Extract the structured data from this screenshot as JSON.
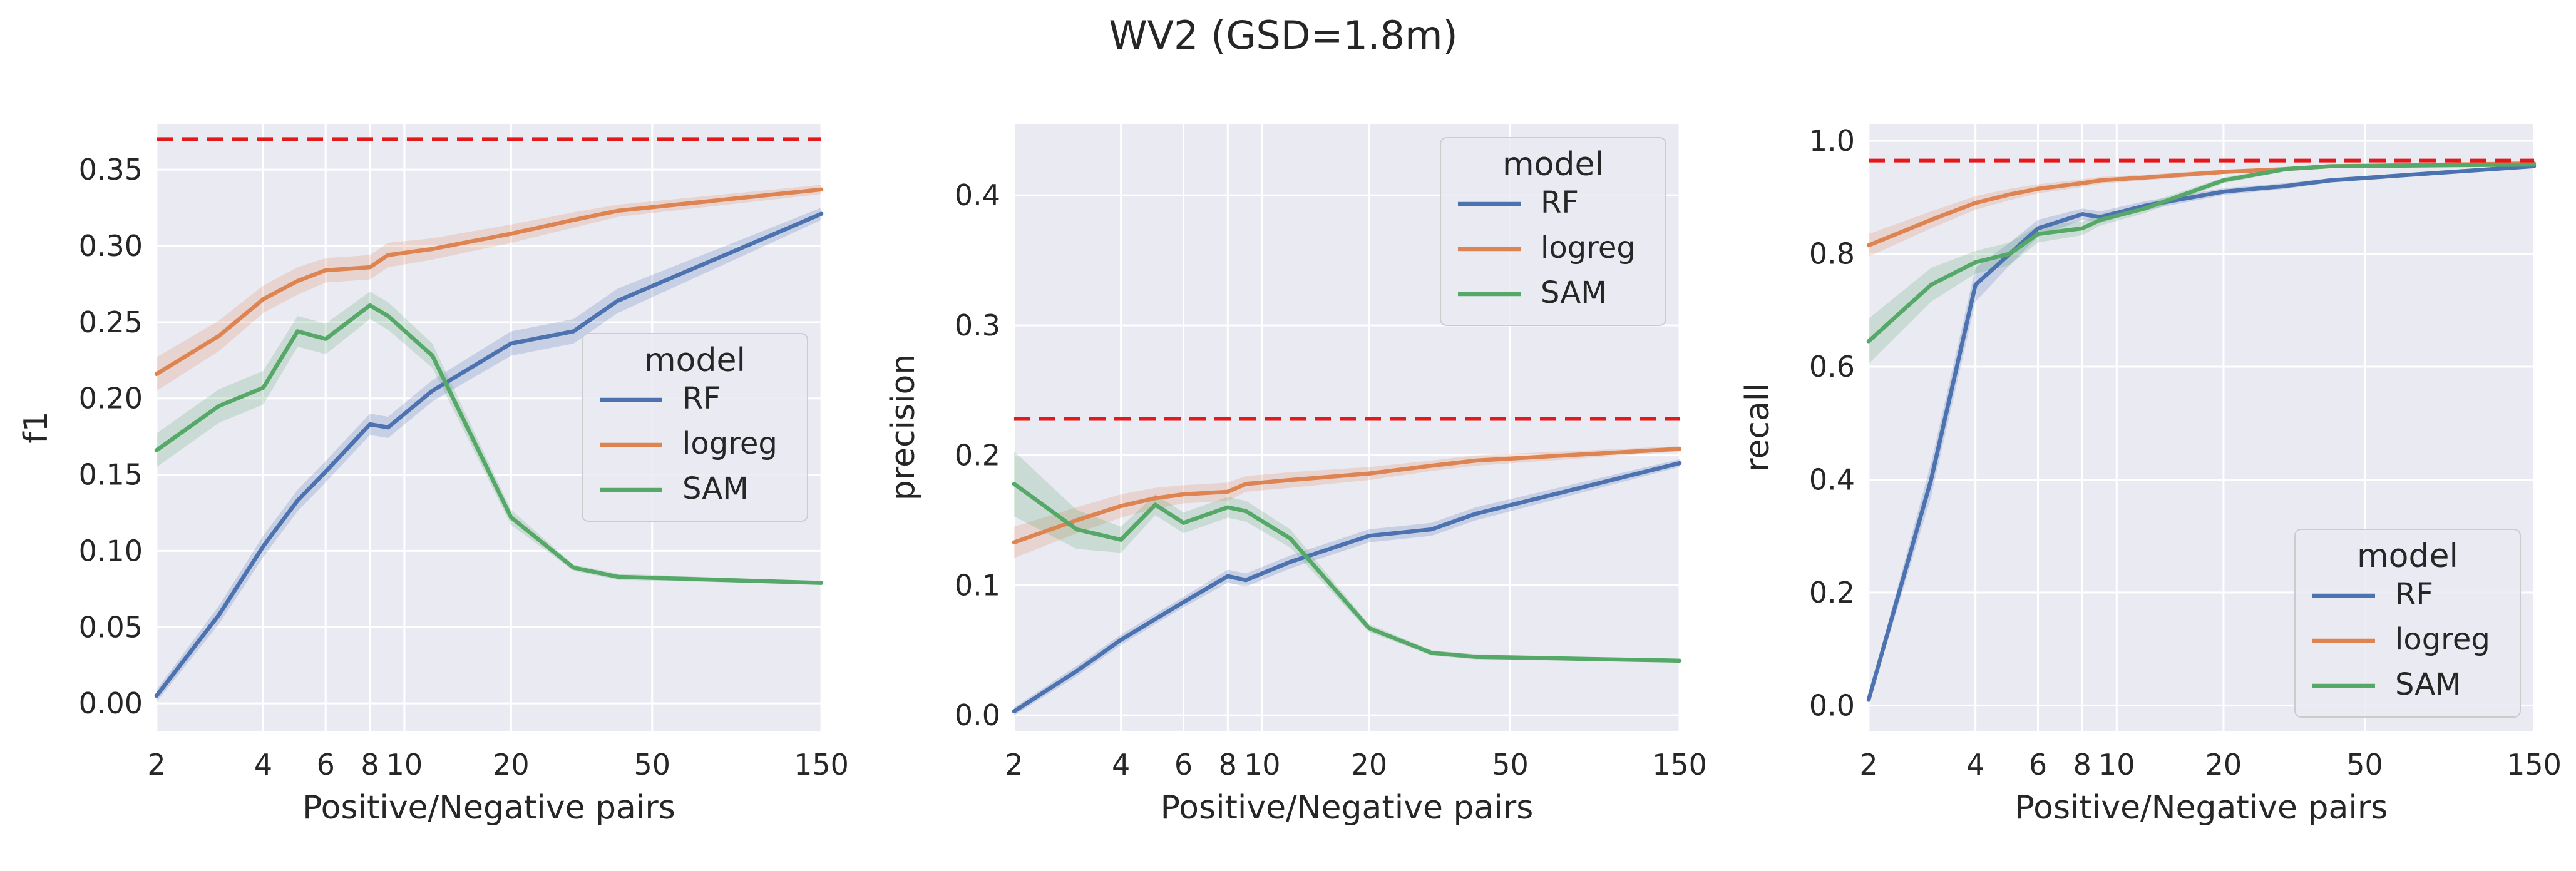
{
  "figure": {
    "title": "WV2 (GSD=1.8m)"
  },
  "chart_data": [
    {
      "type": "line",
      "ylabel": "f1",
      "xlabel": "Positive/Negative pairs",
      "xscale": "log",
      "xlim": [
        2,
        150
      ],
      "ylim": [
        -0.018,
        0.38
      ],
      "xticks": [
        2,
        4,
        6,
        8,
        10,
        20,
        50,
        150
      ],
      "xtick_labels": [
        "2",
        "4",
        "6",
        "8",
        "10",
        "20",
        "50",
        "150"
      ],
      "yticks": [
        0,
        0.05,
        0.1,
        0.15,
        0.2,
        0.25,
        0.3,
        0.35
      ],
      "ytick_labels": [
        "0.00",
        "0.05",
        "0.10",
        "0.15",
        "0.20",
        "0.25",
        "0.30",
        "0.35"
      ],
      "reference_line": {
        "y": 0.37,
        "color": "#e3191c",
        "style": "dashed"
      },
      "legend": {
        "title": "model",
        "position": "center-right"
      },
      "x": [
        2,
        3,
        4,
        5,
        6,
        8,
        9,
        12,
        20,
        30,
        40,
        150
      ],
      "series": [
        {
          "name": "RF",
          "color": "#4c72b0",
          "values": [
            0.005,
            0.058,
            0.103,
            0.133,
            0.152,
            0.183,
            0.181,
            0.205,
            0.236,
            0.244,
            0.264,
            0.321
          ],
          "ci": [
            0.004,
            0.006,
            0.007,
            0.007,
            0.007,
            0.007,
            0.007,
            0.007,
            0.008,
            0.008,
            0.008,
            0.004
          ]
        },
        {
          "name": "logreg",
          "color": "#dd8452",
          "values": [
            0.216,
            0.241,
            0.265,
            0.277,
            0.284,
            0.286,
            0.294,
            0.298,
            0.308,
            0.317,
            0.323,
            0.337
          ],
          "ci": [
            0.011,
            0.01,
            0.009,
            0.009,
            0.008,
            0.008,
            0.008,
            0.007,
            0.006,
            0.005,
            0.004,
            0.003
          ]
        },
        {
          "name": "SAM",
          "color": "#55a868",
          "values": [
            0.166,
            0.195,
            0.207,
            0.244,
            0.239,
            0.261,
            0.254,
            0.228,
            0.122,
            0.089,
            0.083,
            0.079
          ],
          "ci": [
            0.011,
            0.011,
            0.011,
            0.01,
            0.01,
            0.009,
            0.009,
            0.008,
            0.005,
            0.002,
            0.002,
            0.001
          ]
        }
      ]
    },
    {
      "type": "line",
      "ylabel": "precision",
      "xlabel": "Positive/Negative pairs",
      "xscale": "log",
      "xlim": [
        2,
        150
      ],
      "ylim": [
        -0.012,
        0.455
      ],
      "xticks": [
        2,
        4,
        6,
        8,
        10,
        20,
        50,
        150
      ],
      "xtick_labels": [
        "2",
        "4",
        "6",
        "8",
        "10",
        "20",
        "50",
        "150"
      ],
      "yticks": [
        0,
        0.1,
        0.2,
        0.3,
        0.4
      ],
      "ytick_labels": [
        "0.0",
        "0.1",
        "0.2",
        "0.3",
        "0.4"
      ],
      "reference_line": {
        "y": 0.228,
        "color": "#e3191c",
        "style": "dashed"
      },
      "legend": {
        "title": "model",
        "position": "top-right"
      },
      "x": [
        2,
        3,
        4,
        5,
        6,
        8,
        9,
        12,
        20,
        30,
        40,
        150
      ],
      "series": [
        {
          "name": "RF",
          "color": "#4c72b0",
          "values": [
            0.003,
            0.034,
            0.058,
            0.074,
            0.087,
            0.107,
            0.104,
            0.118,
            0.138,
            0.143,
            0.155,
            0.194
          ],
          "ci": [
            0.003,
            0.004,
            0.004,
            0.004,
            0.004,
            0.005,
            0.005,
            0.005,
            0.005,
            0.005,
            0.005,
            0.003
          ]
        },
        {
          "name": "logreg",
          "color": "#dd8452",
          "values": [
            0.133,
            0.15,
            0.161,
            0.167,
            0.17,
            0.172,
            0.178,
            0.181,
            0.186,
            0.192,
            0.196,
            0.205
          ],
          "ci": [
            0.012,
            0.01,
            0.009,
            0.008,
            0.007,
            0.007,
            0.006,
            0.006,
            0.005,
            0.004,
            0.004,
            0.002
          ]
        },
        {
          "name": "SAM",
          "color": "#55a868",
          "values": [
            0.178,
            0.143,
            0.135,
            0.162,
            0.148,
            0.16,
            0.157,
            0.136,
            0.067,
            0.048,
            0.045,
            0.042
          ],
          "ci": [
            0.025,
            0.015,
            0.01,
            0.008,
            0.008,
            0.008,
            0.008,
            0.007,
            0.003,
            0.002,
            0.002,
            0.001
          ]
        }
      ]
    },
    {
      "type": "line",
      "ylabel": "recall",
      "xlabel": "Positive/Negative pairs",
      "xscale": "log",
      "xlim": [
        2,
        150
      ],
      "ylim": [
        -0.045,
        1.03
      ],
      "xticks": [
        2,
        4,
        6,
        8,
        10,
        20,
        50,
        150
      ],
      "xtick_labels": [
        "2",
        "4",
        "6",
        "8",
        "10",
        "20",
        "50",
        "150"
      ],
      "yticks": [
        0,
        0.2,
        0.4,
        0.6,
        0.8,
        1.0
      ],
      "ytick_labels": [
        "0.0",
        "0.2",
        "0.4",
        "0.6",
        "0.8",
        "1.0"
      ],
      "reference_line": {
        "y": 0.965,
        "color": "#e3191c",
        "style": "dashed"
      },
      "legend": {
        "title": "model",
        "position": "bottom-right"
      },
      "x": [
        2,
        3,
        4,
        5,
        6,
        8,
        9,
        12,
        20,
        30,
        40,
        150
      ],
      "series": [
        {
          "name": "RF",
          "color": "#4c72b0",
          "values": [
            0.01,
            0.4,
            0.745,
            0.8,
            0.845,
            0.87,
            0.865,
            0.885,
            0.91,
            0.92,
            0.93,
            0.955
          ],
          "ci": [
            0.008,
            0.03,
            0.03,
            0.02,
            0.015,
            0.01,
            0.01,
            0.008,
            0.006,
            0.005,
            0.004,
            0.002
          ]
        },
        {
          "name": "logreg",
          "color": "#dd8452",
          "values": [
            0.815,
            0.86,
            0.89,
            0.905,
            0.915,
            0.925,
            0.93,
            0.935,
            0.945,
            0.95,
            0.955,
            0.96
          ],
          "ci": [
            0.02,
            0.015,
            0.012,
            0.01,
            0.008,
            0.007,
            0.006,
            0.005,
            0.004,
            0.003,
            0.003,
            0.002
          ]
        },
        {
          "name": "SAM",
          "color": "#55a868",
          "values": [
            0.645,
            0.745,
            0.785,
            0.8,
            0.835,
            0.845,
            0.86,
            0.88,
            0.93,
            0.95,
            0.955,
            0.958
          ],
          "ci": [
            0.04,
            0.03,
            0.02,
            0.02,
            0.015,
            0.012,
            0.01,
            0.008,
            0.005,
            0.004,
            0.003,
            0.002
          ]
        }
      ]
    }
  ]
}
